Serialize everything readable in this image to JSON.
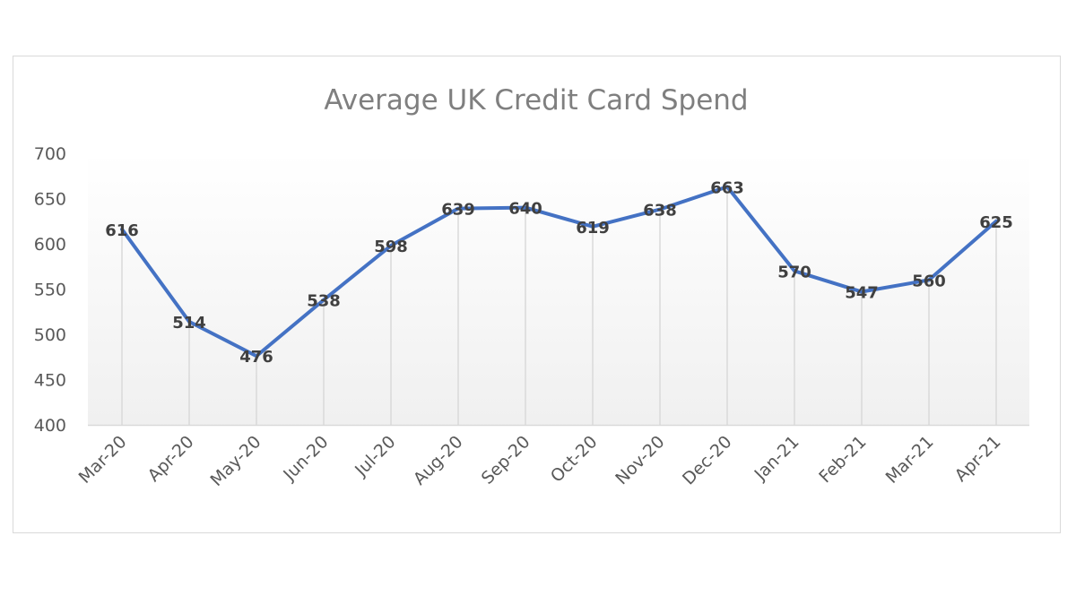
{
  "chart_data": {
    "type": "line",
    "title": "Average UK Credit Card Spend",
    "xlabel": "",
    "ylabel": "",
    "categories": [
      "Mar-20",
      "Apr-20",
      "May-20",
      "Jun-20",
      "Jul-20",
      "Aug-20",
      "Sep-20",
      "Oct-20",
      "Nov-20",
      "Dec-20",
      "Jan-21",
      "Feb-21",
      "Mar-21",
      "Apr-21"
    ],
    "series": [
      {
        "values": [
          616,
          514,
          476,
          538,
          598,
          639,
          640,
          619,
          638,
          663,
          570,
          547,
          560,
          625
        ],
        "color": "#4472c4"
      }
    ],
    "ylim": [
      400,
      700
    ],
    "yticks": [
      400,
      450,
      500,
      550,
      600,
      650,
      700
    ],
    "data_labels": true,
    "drop_lines": true,
    "grid": false,
    "legend": "none"
  }
}
